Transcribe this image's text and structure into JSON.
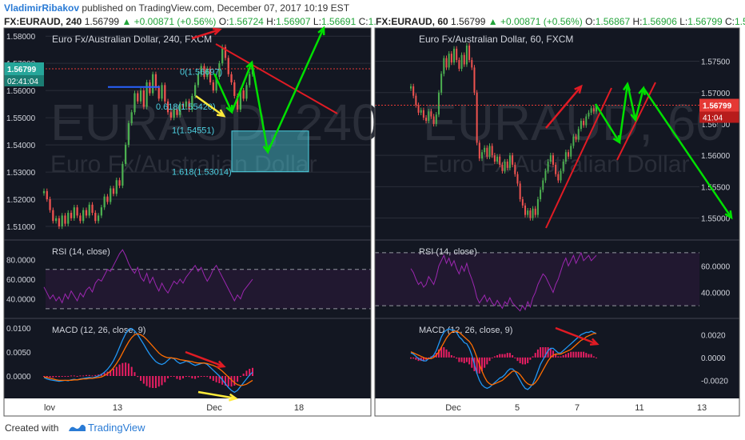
{
  "header": {
    "author": "VladimirRibakov",
    "published_text": " published on TradingView.com, December 07, 2017 10:19 EST"
  },
  "left_ohlc": {
    "symbol": "FX:EURAUD, 240",
    "price": "1.56799",
    "change": "▲ +0.00871 (+0.56%)",
    "o_label": "O:",
    "o": "1.56724",
    "h_label": "H:",
    "h": "1.56907",
    "l_label": "L:",
    "l": "1.56691",
    "c_label": "C:",
    "c": "1."
  },
  "right_ohlc": {
    "symbol": "FX:EURAUD, 60",
    "price": "1.56799",
    "change": "▲ +0.00871 (+0.56%)",
    "o_label": "O:",
    "o": "1.56867",
    "h_label": "H:",
    "h": "1.56906",
    "l_label": "L:",
    "l": "1.56799",
    "c_label": "C:",
    "c": "1.5"
  },
  "footer": {
    "created_with": "Created with",
    "brand": "TradingView"
  },
  "colors": {
    "background": "#131722",
    "up_candle": "#4caf50",
    "down_candle": "#ef5350",
    "rsi_line": "#9c27b0",
    "macd_line": "#2196f3",
    "signal_line": "#ff6d00",
    "histogram": "#e91e63",
    "annotation_green": "#00e000",
    "annotation_red": "#e01b24",
    "annotation_yellow": "#ffeb3b",
    "annotation_blue": "#2962ff",
    "fib_cyan": "#4dd0e1",
    "price_badge": "#e53935"
  },
  "chart_data": [
    {
      "type": "candlestick",
      "title": "Euro Fx/Australian Dollar, 240, FXCM",
      "watermark_symbol": "EURAUD, 240",
      "watermark_name": "Euro Fx/Australian Dollar",
      "y_ticks": [
        "1.58000",
        "1.57000",
        "1.56000",
        "1.55000",
        "1.54000",
        "1.53000",
        "1.52000",
        "1.51000"
      ],
      "ylim": [
        1.505,
        1.583
      ],
      "x_ticks": [
        "lov",
        "13",
        "Dec",
        "18"
      ],
      "current_price_label": "1.56799",
      "countdown_label": "02:41:04",
      "close": [
        1.523,
        1.52,
        1.516,
        1.512,
        1.513,
        1.51,
        1.514,
        1.511,
        1.515,
        1.513,
        1.517,
        1.514,
        1.512,
        1.516,
        1.514,
        1.518,
        1.515,
        1.512,
        1.514,
        1.517,
        1.521,
        1.519,
        1.524,
        1.522,
        1.527,
        1.525,
        1.533,
        1.54,
        1.548,
        1.552,
        1.559,
        1.556,
        1.56,
        1.554,
        1.563,
        1.559,
        1.566,
        1.561,
        1.557,
        1.562,
        1.556,
        1.552,
        1.55,
        1.553,
        1.551,
        1.555,
        1.554,
        1.556,
        1.553,
        1.558,
        1.562,
        1.566,
        1.569,
        1.565,
        1.568,
        1.563,
        1.56,
        1.565,
        1.57,
        1.576,
        1.572,
        1.566,
        1.563,
        1.558,
        1.553,
        1.56,
        1.557,
        1.562,
        1.566,
        1.568
      ],
      "fib_labels": [
        {
          "label": "0(1.56697)",
          "value": 1.56697
        },
        {
          "label": "0.618(1.55420)",
          "value": 1.5542
        },
        {
          "label": "1(1.54551)",
          "value": 1.54551
        },
        {
          "label": "1.618(1.53014)",
          "value": 1.53014
        }
      ],
      "rsi": {
        "title": "RSI (14, close)",
        "y_ticks": [
          "80.0000",
          "60.0000",
          "40.0000"
        ],
        "ylim": [
          25,
          95
        ],
        "bands": [
          70,
          30
        ],
        "values": [
          52,
          46,
          40,
          44,
          38,
          42,
          36,
          45,
          40,
          48,
          43,
          38,
          46,
          42,
          49,
          52,
          47,
          56,
          60,
          58,
          64,
          70,
          68,
          74,
          80,
          86,
          90,
          84,
          76,
          70,
          66,
          72,
          62,
          58,
          66,
          56,
          62,
          54,
          48,
          56,
          50,
          46,
          52,
          58,
          55,
          60,
          56,
          62,
          66,
          70,
          74,
          68,
          72,
          64,
          58,
          63,
          70,
          74,
          68,
          62,
          56,
          50,
          44,
          38,
          44,
          40,
          48,
          52,
          56,
          60
        ]
      },
      "macd": {
        "title": "MACD (12, 26, close, 9)",
        "y_ticks": [
          "0.0100",
          "0.0050",
          "0.0000"
        ],
        "ylim": [
          -0.004,
          0.011
        ],
        "macd": [
          -0.0003,
          -0.0006,
          -0.0008,
          -0.0009,
          -0.001,
          -0.0011,
          -0.001,
          -0.0009,
          -0.001,
          -0.0008,
          -0.0007,
          -0.0008,
          -0.0006,
          -0.0005,
          -0.0004,
          -0.0003,
          -0.0004,
          -0.0002,
          0.0,
          0.0003,
          0.0008,
          0.0014,
          0.0022,
          0.0032,
          0.0045,
          0.006,
          0.0075,
          0.0088,
          0.0097,
          0.0099,
          0.0094,
          0.0086,
          0.0076,
          0.0066,
          0.0055,
          0.0045,
          0.0037,
          0.003,
          0.0026,
          0.0024,
          0.0027,
          0.0033,
          0.0038,
          0.0036,
          0.003,
          0.0026,
          0.0028,
          0.0031,
          0.0029,
          0.0025,
          0.0022,
          0.0024,
          0.0026,
          0.0027,
          0.0024,
          0.0018,
          0.0012,
          0.0006,
          0.0,
          -0.0008,
          -0.0016,
          -0.0024,
          -0.003,
          -0.0034,
          -0.003,
          -0.0022,
          -0.0014,
          -0.0006,
          0.0002,
          0.0008
        ],
        "signal": [
          -0.0002,
          -0.0003,
          -0.0005,
          -0.0006,
          -0.0008,
          -0.0009,
          -0.0009,
          -0.0009,
          -0.0009,
          -0.0009,
          -0.0008,
          -0.0008,
          -0.0007,
          -0.0006,
          -0.0006,
          -0.0005,
          -0.0005,
          -0.0004,
          -0.0003,
          -0.0002,
          0.0001,
          0.0005,
          0.001,
          0.0017,
          0.0026,
          0.0036,
          0.0048,
          0.006,
          0.0071,
          0.008,
          0.0086,
          0.0088,
          0.0086,
          0.0082,
          0.0076,
          0.0069,
          0.0062,
          0.0055,
          0.0048,
          0.0043,
          0.004,
          0.0038,
          0.0038,
          0.0037,
          0.0036,
          0.0034,
          0.0033,
          0.0032,
          0.0031,
          0.003,
          0.0028,
          0.0027,
          0.0027,
          0.0027,
          0.0026,
          0.0024,
          0.0022,
          0.0019,
          0.0015,
          0.001,
          0.0004,
          -0.0002,
          -0.0008,
          -0.0014,
          -0.0018,
          -0.002,
          -0.0019,
          -0.0017,
          -0.0013,
          -0.0009
        ]
      }
    },
    {
      "type": "candlestick",
      "title": "Euro Fx/Australian Dollar, 60, FXCM",
      "watermark_symbol": "EURAUD, 60",
      "watermark_name": "Euro Fx/Australian Dollar",
      "y_ticks": [
        "1.57500",
        "1.57000",
        "1.56500",
        "1.56000",
        "1.55500",
        "1.55000"
      ],
      "ylim": [
        1.5465,
        1.5803
      ],
      "x_ticks": [
        "Dec",
        "5",
        "7",
        "11",
        "13"
      ],
      "current_price_label": "1.56799",
      "countdown_label": "41:04",
      "close": [
        1.571,
        1.5695,
        1.568,
        1.5668,
        1.5672,
        1.566,
        1.5655,
        1.567,
        1.5662,
        1.565,
        1.5665,
        1.57,
        1.573,
        1.5755,
        1.574,
        1.5762,
        1.5748,
        1.577,
        1.5752,
        1.5738,
        1.576,
        1.5745,
        1.5775,
        1.5752,
        1.574,
        1.57,
        1.562,
        1.5595,
        1.5605,
        1.5612,
        1.5598,
        1.5615,
        1.56,
        1.559,
        1.5598,
        1.5585,
        1.5575,
        1.559,
        1.558,
        1.56,
        1.5585,
        1.557,
        1.5555,
        1.553,
        1.552,
        1.5505,
        1.5512,
        1.55,
        1.5515,
        1.5505,
        1.553,
        1.5545,
        1.556,
        1.5575,
        1.559,
        1.56,
        1.5585,
        1.557,
        1.556,
        1.5575,
        1.559,
        1.5605,
        1.5598,
        1.5615,
        1.563,
        1.5625,
        1.5642,
        1.5655,
        1.5648,
        1.5662,
        1.5668,
        1.5675,
        1.567,
        1.5678
      ],
      "rsi": {
        "title": "RSI (14, close)",
        "y_ticks": [
          "60.0000",
          "40.0000"
        ],
        "ylim": [
          24,
          76
        ],
        "bands": [
          70,
          30
        ],
        "values": [
          58,
          55,
          50,
          46,
          48,
          44,
          46,
          52,
          49,
          46,
          52,
          60,
          64,
          68,
          62,
          66,
          60,
          64,
          58,
          54,
          60,
          56,
          62,
          55,
          50,
          44,
          36,
          32,
          35,
          38,
          33,
          36,
          32,
          30,
          34,
          31,
          28,
          33,
          31,
          36,
          32,
          30,
          28,
          26,
          30,
          27,
          33,
          29,
          36,
          40,
          46,
          50,
          54,
          52,
          48,
          44,
          40,
          46,
          50,
          56,
          62,
          66,
          60,
          64,
          68,
          62,
          66,
          70,
          64,
          66,
          68,
          64,
          66,
          68
        ]
      },
      "macd": {
        "title": "MACD (12, 26, close, 9)",
        "y_ticks": [
          "0.0020",
          "0.0000",
          "-0.0020"
        ],
        "ylim": [
          -0.0033,
          0.003
        ],
        "macd": [
          0.0004,
          0.0003,
          0.0001,
          -0.0001,
          -0.0002,
          -0.0003,
          -0.0003,
          -0.0001,
          0.0,
          0.0002,
          0.0006,
          0.0012,
          0.0018,
          0.0022,
          0.0024,
          0.0025,
          0.0024,
          0.0024,
          0.0022,
          0.0018,
          0.0016,
          0.0013,
          0.0012,
          0.0008,
          0.0002,
          -0.0006,
          -0.0014,
          -0.002,
          -0.0024,
          -0.0026,
          -0.0027,
          -0.0026,
          -0.0024,
          -0.0022,
          -0.002,
          -0.0018,
          -0.0017,
          -0.0015,
          -0.0012,
          -0.001,
          -0.001,
          -0.0012,
          -0.0016,
          -0.002,
          -0.0024,
          -0.0027,
          -0.0028,
          -0.0026,
          -0.0023,
          -0.0018,
          -0.0012,
          -0.0006,
          -0.0002,
          0.0002,
          0.0006,
          0.0008,
          0.0008,
          0.0006,
          0.0004,
          0.0004,
          0.0006,
          0.0008,
          0.001,
          0.0012,
          0.0014,
          0.0016,
          0.0018,
          0.002,
          0.0021,
          0.0022,
          0.0022,
          0.0023,
          0.0022,
          0.0021
        ],
        "signal": [
          0.0005,
          0.0004,
          0.0003,
          0.0002,
          0.0001,
          0.0,
          -0.0001,
          -0.0001,
          -0.0001,
          0.0,
          0.0002,
          0.0005,
          0.0009,
          0.0013,
          0.0017,
          0.002,
          0.0022,
          0.0023,
          0.0023,
          0.0022,
          0.002,
          0.0018,
          0.0016,
          0.0014,
          0.0011,
          0.0006,
          0.0,
          -0.0006,
          -0.0012,
          -0.0017,
          -0.0021,
          -0.0023,
          -0.0024,
          -0.0023,
          -0.0022,
          -0.0021,
          -0.002,
          -0.0018,
          -0.0016,
          -0.0014,
          -0.0012,
          -0.0012,
          -0.0013,
          -0.0015,
          -0.0018,
          -0.0021,
          -0.0023,
          -0.0024,
          -0.0024,
          -0.0022,
          -0.0019,
          -0.0015,
          -0.0011,
          -0.0007,
          -0.0003,
          0.0,
          0.0002,
          0.0003,
          0.0003,
          0.0003,
          0.0004,
          0.0005,
          0.0006,
          0.0007,
          0.0009,
          0.0011,
          0.0013,
          0.0015,
          0.0016,
          0.0018,
          0.0019,
          0.002,
          0.0021,
          0.0021
        ]
      }
    }
  ]
}
